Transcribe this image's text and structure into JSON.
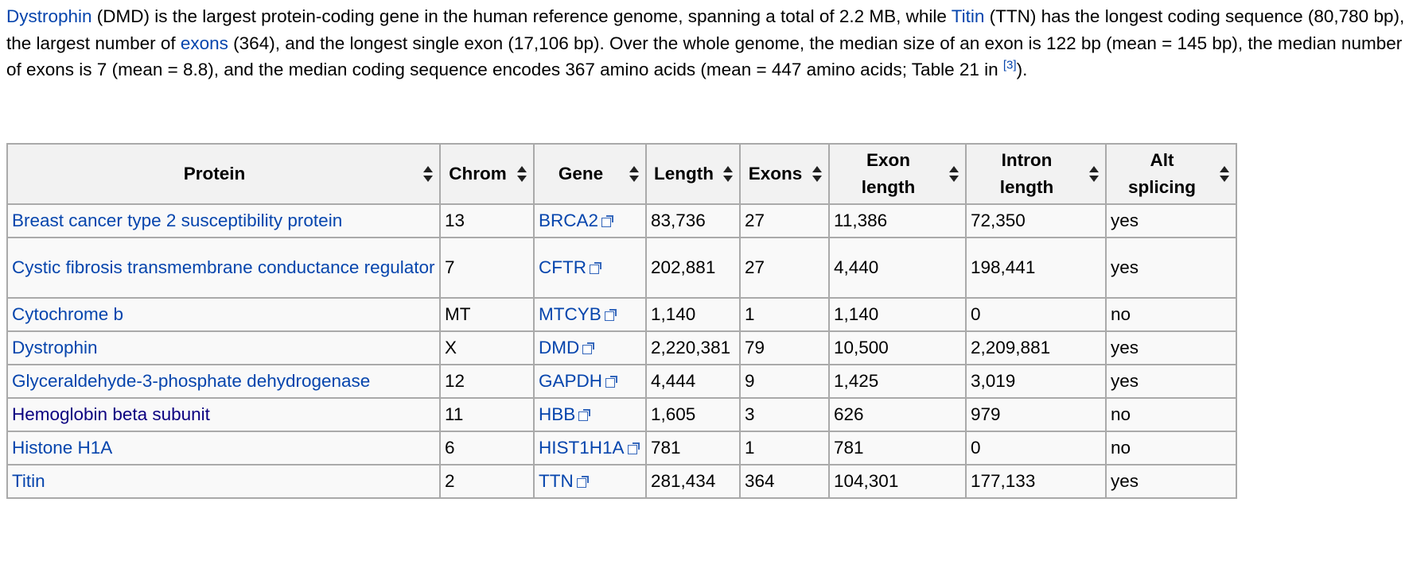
{
  "intro": {
    "link_dystrophin": "Dystrophin",
    "t1": " (DMD) is the largest protein-coding gene in the human reference genome, spanning a total of 2.2 MB, while ",
    "link_titin": "Titin",
    "t2": " (TTN) has the longest coding sequence (80,780 bp), the largest number of ",
    "link_exons": "exons",
    "t3": " (364), and the longest single exon (17,106 bp). Over the whole genome, the median size of an exon is 122 bp (mean = 145 bp), the median number of exons is 7 (mean = 8.8), and the median coding sequence encodes 367 amino acids (mean = 447 amino acids; Table 21 in ",
    "ref": "[3]",
    "t4": ")."
  },
  "table": {
    "headers": {
      "protein": "Protein",
      "chrom": "Chrom",
      "gene": "Gene",
      "length": "Length",
      "exons": "Exons",
      "exon_length_1": "Exon",
      "exon_length_2": "length",
      "intron_length_1": "Intron",
      "intron_length_2": "length",
      "alt_splicing_1": "Alt",
      "alt_splicing_2": "splicing"
    },
    "rows": [
      {
        "protein": "Breast cancer type 2 susceptibility protein",
        "chrom": "13",
        "gene": "BRCA2",
        "length": "83,736",
        "exons": "27",
        "exon_length": "11,386",
        "intron_length": "72,350",
        "alt": "yes"
      },
      {
        "protein": "Cystic fibrosis transmembrane conductance regulator",
        "chrom": "7",
        "gene": "CFTR",
        "length": "202,881",
        "exons": "27",
        "exon_length": "4,440",
        "intron_length": "198,441",
        "alt": "yes"
      },
      {
        "protein": "Cytochrome b",
        "chrom": "MT",
        "gene": "MTCYB",
        "length": "1,140",
        "exons": "1",
        "exon_length": "1,140",
        "intron_length": "0",
        "alt": "no"
      },
      {
        "protein": "Dystrophin",
        "chrom": "X",
        "gene": "DMD",
        "length": "2,220,381",
        "exons": "79",
        "exon_length": "10,500",
        "intron_length": "2,209,881",
        "alt": "yes"
      },
      {
        "protein": "Glyceraldehyde-3-phosphate dehydrogenase",
        "chrom": "12",
        "gene": "GAPDH",
        "length": "4,444",
        "exons": "9",
        "exon_length": "1,425",
        "intron_length": "3,019",
        "alt": "yes"
      },
      {
        "protein": "Hemoglobin beta subunit",
        "chrom": "11",
        "gene": "HBB",
        "length": "1,605",
        "exons": "3",
        "exon_length": "626",
        "intron_length": "979",
        "alt": "no"
      },
      {
        "protein": "Histone H1A",
        "chrom": "6",
        "gene": "HIST1H1A",
        "length": "781",
        "exons": "1",
        "exon_length": "781",
        "intron_length": "0",
        "alt": "no"
      },
      {
        "protein": "Titin",
        "chrom": "2",
        "gene": "TTN",
        "length": "281,434",
        "exons": "364",
        "exon_length": "104,301",
        "intron_length": "177,133",
        "alt": "yes"
      }
    ]
  },
  "colors": {
    "link": "#0645ad",
    "visited_link": "#0b0080",
    "table_border": "#aaaaaa",
    "header_bg": "#f2f2f2",
    "cell_bg": "#f9f9f9"
  },
  "icons": {
    "sort": "sort-icon",
    "external_link": "external-link-icon"
  }
}
